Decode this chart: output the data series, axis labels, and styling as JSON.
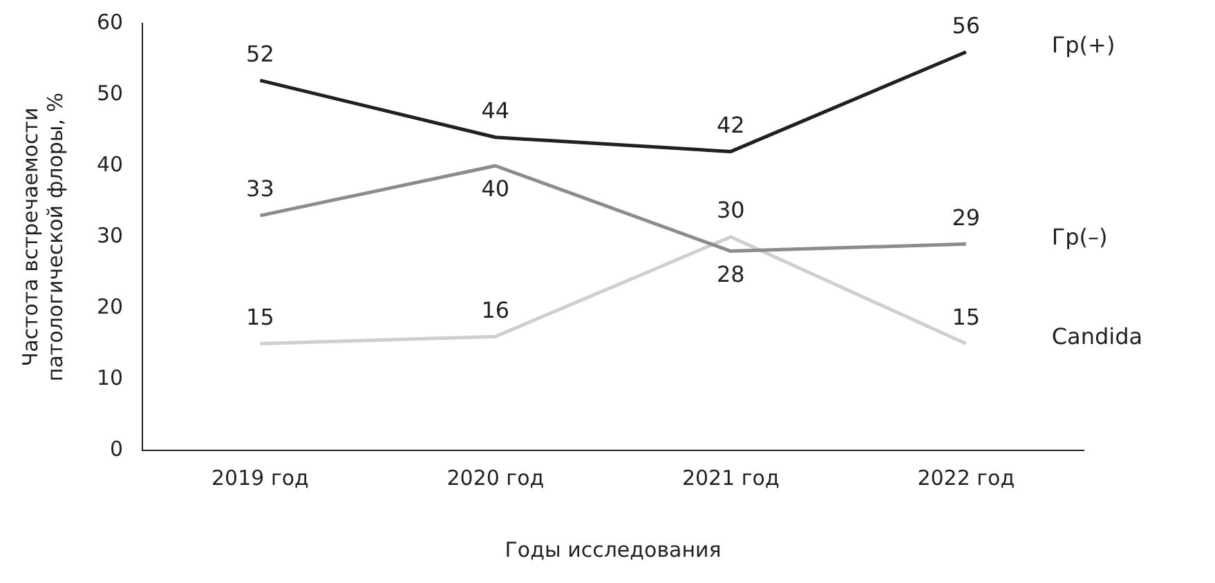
{
  "chart_data": {
    "type": "line",
    "xlabel": "Годы исследования",
    "ylabel": "Частота встречаемости\nпатологической флоры, %",
    "categories": [
      "2019 год",
      "2020 год",
      "2021 год",
      "2022 год"
    ],
    "series": [
      {
        "name": "Гр(+)",
        "color": "#231f20",
        "values": [
          52,
          44,
          42,
          56
        ]
      },
      {
        "name": "Гр(–)",
        "color": "#8c8c8c",
        "values": [
          33,
          40,
          28,
          29
        ]
      },
      {
        "name": "Candida",
        "color": "#cfcfcf",
        "values": [
          15,
          16,
          30,
          15
        ]
      }
    ],
    "ylim": [
      0,
      60
    ],
    "yticks": [
      0,
      10,
      20,
      30,
      40,
      50,
      60
    ],
    "grid": false,
    "legend": false,
    "data_labels": true,
    "marker": "none"
  }
}
